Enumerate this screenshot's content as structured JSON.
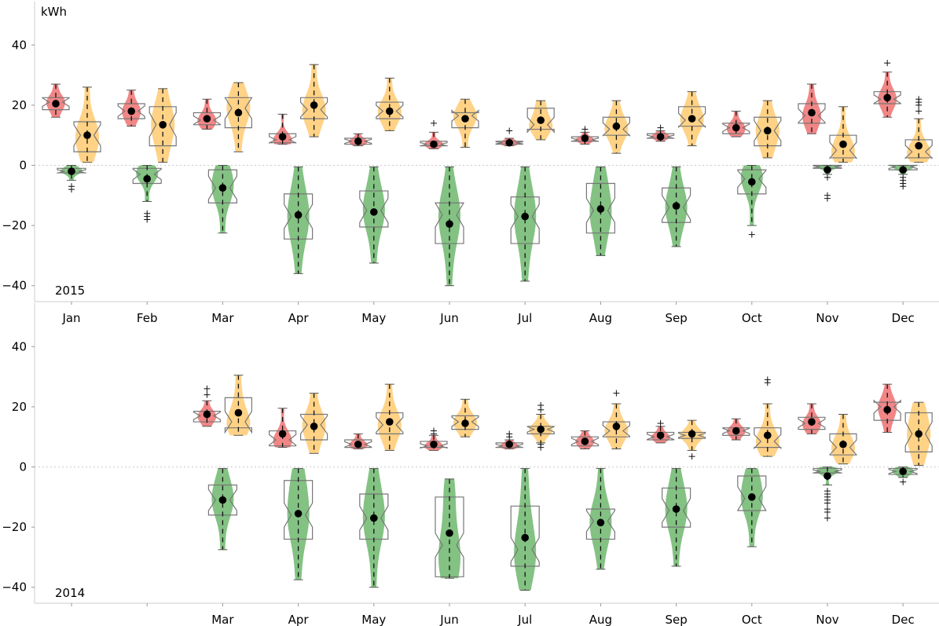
{
  "chart_data": [
    {
      "type": "violin",
      "year_label": "2015",
      "ylabel": "kWh",
      "ylim": [
        -45,
        50
      ],
      "yticks": [
        -40,
        -20,
        0,
        20,
        40
      ],
      "grid": false,
      "zero_line": "dotted",
      "categories": [
        "Jan",
        "Feb",
        "Mar",
        "Apr",
        "May",
        "Jun",
        "Jul",
        "Aug",
        "Sep",
        "Oct",
        "Nov",
        "Dec"
      ],
      "series": [
        {
          "color": "#f08080",
          "role": "red (left, positive)",
          "groups": [
            {
              "min": 16,
              "q1": 18.5,
              "median": 21,
              "q3": 22.5,
              "max": 27,
              "mean": 20.5,
              "outliers": []
            },
            {
              "min": 13,
              "q1": 15.5,
              "median": 18,
              "q3": 20.5,
              "max": 25,
              "mean": 18,
              "outliers": []
            },
            {
              "min": 12,
              "q1": 13.5,
              "median": 15,
              "q3": 17.5,
              "max": 22,
              "mean": 15.5,
              "outliers": []
            },
            {
              "min": 7,
              "q1": 7.5,
              "median": 8.5,
              "q3": 10.5,
              "max": 17,
              "mean": 9.5,
              "outliers": []
            },
            {
              "min": 6.5,
              "q1": 7,
              "median": 8,
              "q3": 9,
              "max": 10.5,
              "mean": 8,
              "outliers": []
            },
            {
              "min": 5.5,
              "q1": 6.5,
              "median": 7,
              "q3": 8,
              "max": 11,
              "mean": 7,
              "outliers": [
                14
              ]
            },
            {
              "min": 6.5,
              "q1": 7,
              "median": 7.5,
              "q3": 8,
              "max": 9,
              "mean": 7.5,
              "outliers": [
                11.5
              ]
            },
            {
              "min": 7,
              "q1": 8,
              "median": 8.5,
              "q3": 9.5,
              "max": 11,
              "mean": 9,
              "outliers": [
                12
              ]
            },
            {
              "min": 8,
              "q1": 9,
              "median": 9.5,
              "q3": 10.5,
              "max": 11.5,
              "mean": 9.5,
              "outliers": [
                12.5
              ]
            },
            {
              "min": 9.5,
              "q1": 10.5,
              "median": 12.5,
              "q3": 14,
              "max": 18,
              "mean": 12.5,
              "outliers": []
            },
            {
              "min": 10.5,
              "q1": 14,
              "median": 16.5,
              "q3": 20.5,
              "max": 27,
              "mean": 17.5,
              "outliers": []
            },
            {
              "min": 16,
              "q1": 20.5,
              "median": 22,
              "q3": 24.5,
              "max": 31,
              "mean": 22.5,
              "outliers": [
                34
              ]
            }
          ]
        },
        {
          "color": "#ffd080",
          "role": "orange (right, positive)",
          "groups": [
            {
              "min": 1,
              "q1": 4.5,
              "median": 10,
              "q3": 14.5,
              "max": 26,
              "mean": 10,
              "outliers": []
            },
            {
              "min": 1,
              "q1": 6.5,
              "median": 13.5,
              "q3": 19.5,
              "max": 25.5,
              "mean": 13.5,
              "outliers": []
            },
            {
              "min": 4.5,
              "q1": 12.5,
              "median": 19,
              "q3": 22.5,
              "max": 27.5,
              "mean": 17.5,
              "outliers": []
            },
            {
              "min": 9.5,
              "q1": 15.5,
              "median": 18.5,
              "q3": 22.5,
              "max": 33.5,
              "mean": 20,
              "outliers": []
            },
            {
              "min": 11.5,
              "q1": 15.5,
              "median": 18,
              "q3": 21,
              "max": 29,
              "mean": 18,
              "outliers": []
            },
            {
              "min": 6,
              "q1": 12.5,
              "median": 16.5,
              "q3": 17.5,
              "max": 22,
              "mean": 15.5,
              "outliers": []
            },
            {
              "min": 8.5,
              "q1": 12,
              "median": 13.5,
              "q3": 19,
              "max": 21.5,
              "mean": 15,
              "outliers": []
            },
            {
              "min": 4,
              "q1": 10,
              "median": 12,
              "q3": 16,
              "max": 21.5,
              "mean": 13,
              "outliers": []
            },
            {
              "min": 6.5,
              "q1": 13,
              "median": 15,
              "q3": 19.5,
              "max": 24.5,
              "mean": 15.5,
              "outliers": []
            },
            {
              "min": 2.5,
              "q1": 6.5,
              "median": 11.5,
              "q3": 16,
              "max": 21.5,
              "mean": 11.5,
              "outliers": []
            },
            {
              "min": 1,
              "q1": 2.5,
              "median": 5,
              "q3": 10,
              "max": 19.5,
              "mean": 7,
              "outliers": []
            },
            {
              "min": 1,
              "q1": 2.5,
              "median": 4.5,
              "q3": 8.5,
              "max": 15.5,
              "mean": 6.5,
              "outliers": [
                18,
                20,
                21,
                22
              ]
            }
          ]
        },
        {
          "color": "#7cbf7c",
          "role": "green (center, negative)",
          "groups": [
            {
              "min": -5,
              "q1": -2.5,
              "median": -2,
              "q3": -1,
              "max": 0,
              "mean": -2,
              "outliers": [
                -7,
                -8
              ]
            },
            {
              "min": -12,
              "q1": -6,
              "median": -3,
              "q3": -1,
              "max": 0,
              "mean": -4.5,
              "outliers": [
                -16,
                -17,
                -18
              ]
            },
            {
              "min": -22.5,
              "q1": -12.5,
              "median": -7.5,
              "q3": -1.5,
              "max": 0,
              "mean": -7.5,
              "outliers": []
            },
            {
              "min": -36,
              "q1": -24.5,
              "median": -17,
              "q3": -9.5,
              "max": -0.5,
              "mean": -16.5,
              "outliers": []
            },
            {
              "min": -32.5,
              "q1": -20.5,
              "median": -15,
              "q3": -8.5,
              "max": -0.5,
              "mean": -15.5,
              "outliers": []
            },
            {
              "min": -40,
              "q1": -26,
              "median": -16.5,
              "q3": -12.5,
              "max": -0.5,
              "mean": -19.5,
              "outliers": []
            },
            {
              "min": -38.5,
              "q1": -26,
              "median": -17,
              "q3": -10.5,
              "max": -0.5,
              "mean": -17,
              "outliers": []
            },
            {
              "min": -30,
              "q1": -22.5,
              "median": -15,
              "q3": -6,
              "max": -0.5,
              "mean": -14.5,
              "outliers": []
            },
            {
              "min": -27,
              "q1": -19,
              "median": -14,
              "q3": -7.5,
              "max": -0.5,
              "mean": -13.5,
              "outliers": []
            },
            {
              "min": -20,
              "q1": -9.5,
              "median": -4.5,
              "q3": -1.5,
              "max": 0,
              "mean": -5.5,
              "outliers": [
                -23
              ]
            },
            {
              "min": -3,
              "q1": -1,
              "median": -0.5,
              "q3": 0,
              "max": 0,
              "mean": -1.5,
              "outliers": [
                -4,
                -10,
                -11
              ]
            },
            {
              "min": -3,
              "q1": -1.5,
              "median": -0.5,
              "q3": 0,
              "max": 0,
              "mean": -1.5,
              "outliers": [
                -4,
                -5,
                -6,
                -7
              ]
            }
          ]
        }
      ]
    },
    {
      "type": "violin",
      "year_label": "2014",
      "ylim": [
        -45,
        50
      ],
      "yticks": [
        -40,
        -20,
        0,
        20,
        40
      ],
      "grid": false,
      "zero_line": "dotted",
      "categories": [
        "",
        "",
        "Mar",
        "Apr",
        "May",
        "Jun",
        "Jul",
        "Aug",
        "Sep",
        "Oct",
        "Nov",
        "Dec"
      ],
      "series": [
        {
          "color": "#f08080",
          "role": "red (left, positive)",
          "groups": [
            null,
            null,
            {
              "min": 13.5,
              "q1": 15,
              "median": 17,
              "q3": 18.5,
              "max": 22,
              "mean": 17.5,
              "outliers": [
                24,
                26
              ]
            },
            {
              "min": 6.5,
              "q1": 7,
              "median": 9,
              "q3": 12,
              "max": 19.5,
              "mean": 11,
              "outliers": []
            },
            {
              "min": 6,
              "q1": 6.5,
              "median": 7.5,
              "q3": 9,
              "max": 11,
              "mean": 7.5,
              "outliers": []
            },
            {
              "min": 5.5,
              "q1": 6.5,
              "median": 7,
              "q3": 8.5,
              "max": 10.5,
              "mean": 7.5,
              "outliers": [
                11,
                12
              ]
            },
            {
              "min": 6,
              "q1": 6.5,
              "median": 7,
              "q3": 8,
              "max": 9,
              "mean": 7.5,
              "outliers": [
                10,
                11
              ]
            },
            {
              "min": 6,
              "q1": 7,
              "median": 8.5,
              "q3": 10,
              "max": 12,
              "mean": 8.5,
              "outliers": []
            },
            {
              "min": 8,
              "q1": 9,
              "median": 10,
              "q3": 11.5,
              "max": 13.5,
              "mean": 10.5,
              "outliers": [
                14.5
              ]
            },
            {
              "min": 9,
              "q1": 10.5,
              "median": 12,
              "q3": 13,
              "max": 16,
              "mean": 12,
              "outliers": []
            },
            {
              "min": 11,
              "q1": 12.5,
              "median": 14.5,
              "q3": 16.5,
              "max": 21,
              "mean": 15,
              "outliers": []
            },
            {
              "min": 11.5,
              "q1": 15.5,
              "median": 20,
              "q3": 21.5,
              "max": 27.5,
              "mean": 19,
              "outliers": []
            }
          ]
        },
        {
          "color": "#ffd080",
          "role": "orange (right, positive)",
          "groups": [
            null,
            null,
            {
              "min": 10.5,
              "q1": 13,
              "median": 15,
              "q3": 23,
              "max": 30.5,
              "mean": 18,
              "outliers": []
            },
            {
              "min": 4.5,
              "q1": 9,
              "median": 14,
              "q3": 17.5,
              "max": 24.5,
              "mean": 13.5,
              "outliers": []
            },
            {
              "min": 5.5,
              "q1": 11,
              "median": 14,
              "q3": 18,
              "max": 27.5,
              "mean": 15,
              "outliers": []
            },
            {
              "min": 10,
              "q1": 12.5,
              "median": 15,
              "q3": 17,
              "max": 22.5,
              "mean": 14.5,
              "outliers": []
            },
            {
              "min": 8,
              "q1": 11,
              "median": 12.5,
              "q3": 13.5,
              "max": 17.5,
              "mean": 12.5,
              "outliers": [
                6.5,
                7.5,
                19,
                20.5
              ]
            },
            {
              "min": 6,
              "q1": 10,
              "median": 12,
              "q3": 15,
              "max": 21,
              "mean": 13.5,
              "outliers": [
                24.5
              ]
            },
            {
              "min": 5.5,
              "q1": 9.5,
              "median": 10.5,
              "q3": 11.5,
              "max": 15.5,
              "mean": 11,
              "outliers": [
                3.5
              ]
            },
            {
              "min": 3.5,
              "q1": 6.5,
              "median": 8.5,
              "q3": 13,
              "max": 21,
              "mean": 10.5,
              "outliers": [
                28,
                29
              ]
            },
            {
              "min": 1,
              "q1": 4,
              "median": 6.5,
              "q3": 11,
              "max": 17.5,
              "mean": 7.5,
              "outliers": []
            },
            {
              "min": 0.5,
              "q1": 5,
              "median": 11,
              "q3": 18,
              "max": 21.5,
              "mean": 11,
              "outliers": []
            }
          ]
        },
        {
          "color": "#7cbf7c",
          "role": "green (center, negative)",
          "groups": [
            null,
            null,
            {
              "min": -27.5,
              "q1": -16,
              "median": -11,
              "q3": -6,
              "max": -0.5,
              "mean": -11,
              "outliers": []
            },
            {
              "min": -37.5,
              "q1": -24,
              "median": -16,
              "q3": -4.5,
              "max": -0.5,
              "mean": -15.5,
              "outliers": []
            },
            {
              "min": -40,
              "q1": -24,
              "median": -17,
              "q3": -9,
              "max": -0.5,
              "mean": -17,
              "outliers": []
            },
            {
              "min": -37,
              "q1": -36.5,
              "median": -26,
              "q3": -10,
              "max": -4,
              "mean": -22,
              "outliers": []
            },
            {
              "min": -41,
              "q1": -33,
              "median": -27.5,
              "q3": -13,
              "max": -0.5,
              "mean": -23.5,
              "outliers": []
            },
            {
              "min": -34,
              "q1": -24,
              "median": -18,
              "q3": -14,
              "max": -0.5,
              "mean": -18.5,
              "outliers": []
            },
            {
              "min": -33,
              "q1": -20,
              "median": -14.5,
              "q3": -7,
              "max": -0.5,
              "mean": -14,
              "outliers": []
            },
            {
              "min": -26.5,
              "q1": -14.5,
              "median": -10.5,
              "q3": -3,
              "max": -0.5,
              "mean": -10,
              "outliers": []
            },
            {
              "min": -6,
              "q1": -2,
              "median": -1.5,
              "q3": -0.5,
              "max": 0,
              "mean": -3,
              "outliers": [
                -8,
                -9,
                -10,
                -11,
                -12,
                -14,
                -15,
                -17
              ]
            },
            {
              "min": -3.5,
              "q1": -2.5,
              "median": -1.5,
              "q3": -0.5,
              "max": 0,
              "mean": -1.5,
              "outliers": [
                -5
              ]
            }
          ]
        }
      ]
    }
  ]
}
